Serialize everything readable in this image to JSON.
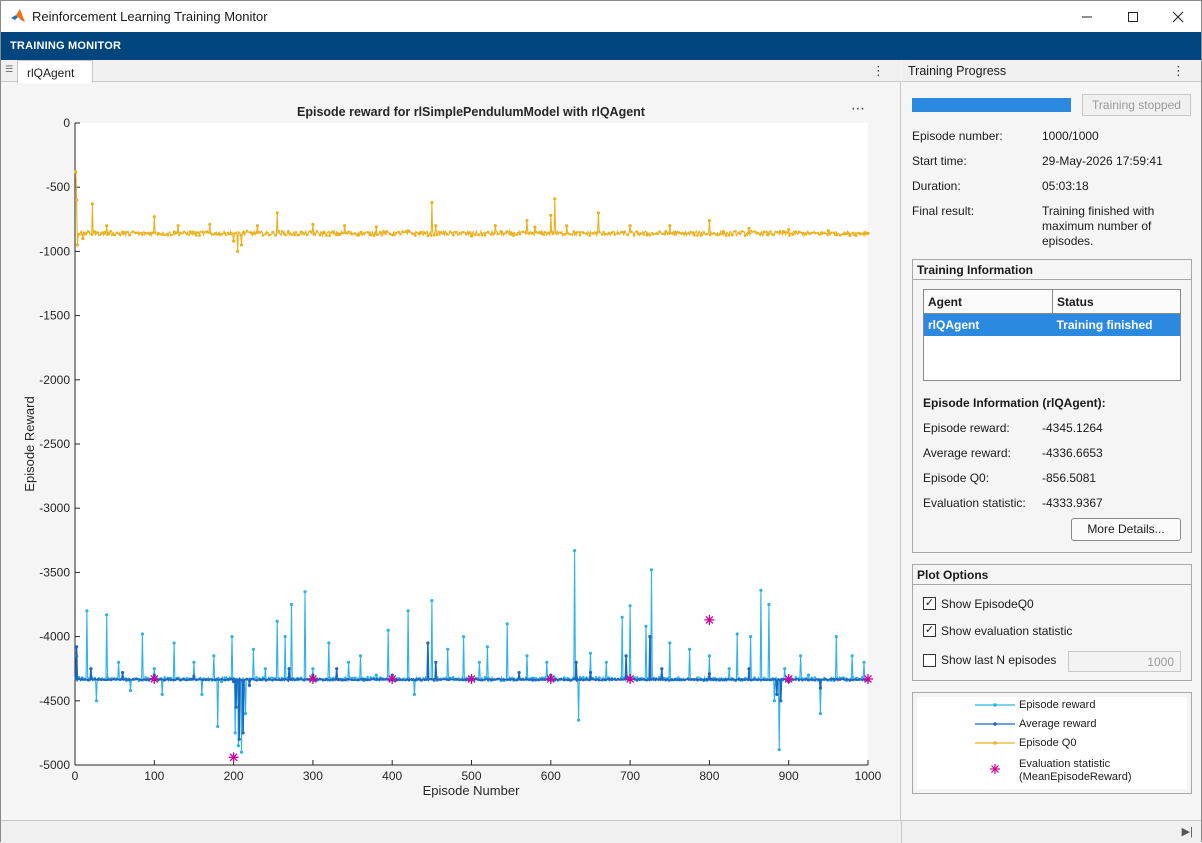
{
  "window": {
    "title": "Reinforcement Learning Training Monitor",
    "minimize_icon": "minimize-icon",
    "maximize_icon": "maximize-icon",
    "close_icon": "close-icon"
  },
  "toolstrip": {
    "tab_label": "TRAINING MONITOR"
  },
  "document": {
    "tab_label": "rlQAgent"
  },
  "chart_data": {
    "type": "line",
    "title": "Episode reward for rlSimplePendulumModel with rlQAgent",
    "xlabel": "Episode Number",
    "ylabel": "Episode Reward",
    "xlim": [
      0,
      1000
    ],
    "ylim": [
      -5000,
      0
    ],
    "xticks": [
      0,
      100,
      200,
      300,
      400,
      500,
      600,
      700,
      800,
      900,
      1000
    ],
    "yticks": [
      0,
      -500,
      -1000,
      -1500,
      -2000,
      -2500,
      -3000,
      -3500,
      -4000,
      -4500,
      -5000
    ],
    "grid": false,
    "legend": "right-panel",
    "series": [
      {
        "name": "Episode reward",
        "color": "#2db3e8",
        "marker": "dot",
        "baseline": -4330,
        "spikes": [
          [
            2,
            -4150
          ],
          [
            15,
            -3800
          ],
          [
            27,
            -4500
          ],
          [
            40,
            -3830
          ],
          [
            55,
            -4200
          ],
          [
            70,
            -4420
          ],
          [
            85,
            -3980
          ],
          [
            100,
            -4250
          ],
          [
            110,
            -4450
          ],
          [
            125,
            -4050
          ],
          [
            150,
            -4200
          ],
          [
            160,
            -4450
          ],
          [
            175,
            -4150
          ],
          [
            180,
            -4700
          ],
          [
            185,
            -4350
          ],
          [
            198,
            -4000
          ],
          [
            202,
            -4750
          ],
          [
            206,
            -4850
          ],
          [
            210,
            -4900
          ],
          [
            215,
            -4600
          ],
          [
            225,
            -4100
          ],
          [
            240,
            -4250
          ],
          [
            255,
            -3880
          ],
          [
            265,
            -4000
          ],
          [
            273,
            -3750
          ],
          [
            290,
            -3650
          ],
          [
            300,
            -4250
          ],
          [
            320,
            -4050
          ],
          [
            345,
            -4200
          ],
          [
            360,
            -4150
          ],
          [
            380,
            -4300
          ],
          [
            395,
            -3950
          ],
          [
            420,
            -3800
          ],
          [
            428,
            -4450
          ],
          [
            450,
            -3720
          ],
          [
            470,
            -4100
          ],
          [
            490,
            -4000
          ],
          [
            510,
            -4200
          ],
          [
            520,
            -4080
          ],
          [
            545,
            -3900
          ],
          [
            570,
            -4150
          ],
          [
            595,
            -4200
          ],
          [
            630,
            -3330
          ],
          [
            635,
            -4650
          ],
          [
            650,
            -4130
          ],
          [
            670,
            -4200
          ],
          [
            690,
            -3850
          ],
          [
            700,
            -3760
          ],
          [
            720,
            -3920
          ],
          [
            727,
            -3480
          ],
          [
            750,
            -4050
          ],
          [
            775,
            -4100
          ],
          [
            800,
            -4150
          ],
          [
            825,
            -4250
          ],
          [
            835,
            -3980
          ],
          [
            852,
            -4000
          ],
          [
            865,
            -3640
          ],
          [
            875,
            -3750
          ],
          [
            882,
            -4500
          ],
          [
            888,
            -4880
          ],
          [
            895,
            -4250
          ],
          [
            915,
            -4150
          ],
          [
            925,
            -4300
          ],
          [
            940,
            -4600
          ],
          [
            960,
            -4000
          ],
          [
            980,
            -4150
          ],
          [
            995,
            -4200
          ]
        ]
      },
      {
        "name": "Average reward",
        "color": "#1f66bf",
        "marker": "dot",
        "baseline": -4335,
        "spikes": [
          [
            2,
            -4080
          ],
          [
            20,
            -4250
          ],
          [
            60,
            -4280
          ],
          [
            100,
            -4300
          ],
          [
            150,
            -4310
          ],
          [
            200,
            -4350
          ],
          [
            203,
            -4550
          ],
          [
            207,
            -4800
          ],
          [
            212,
            -4750
          ],
          [
            220,
            -4380
          ],
          [
            270,
            -4250
          ],
          [
            300,
            -4300
          ],
          [
            330,
            -4250
          ],
          [
            400,
            -4300
          ],
          [
            445,
            -4050
          ],
          [
            455,
            -4200
          ],
          [
            500,
            -4320
          ],
          [
            560,
            -4280
          ],
          [
            600,
            -4300
          ],
          [
            632,
            -4200
          ],
          [
            650,
            -4280
          ],
          [
            695,
            -4150
          ],
          [
            725,
            -4000
          ],
          [
            740,
            -4250
          ],
          [
            800,
            -4290
          ],
          [
            850,
            -4250
          ],
          [
            885,
            -4450
          ],
          [
            890,
            -4500
          ],
          [
            900,
            -4350
          ],
          [
            940,
            -4400
          ],
          [
            1000,
            -4340
          ]
        ]
      },
      {
        "name": "Episode Q0",
        "color": "#edb120",
        "marker": "dot",
        "baseline": -860,
        "spikes": [
          [
            1,
            -380
          ],
          [
            2,
            -600
          ],
          [
            3,
            -950
          ],
          [
            10,
            -900
          ],
          [
            22,
            -630
          ],
          [
            40,
            -800
          ],
          [
            60,
            -850
          ],
          [
            100,
            -730
          ],
          [
            130,
            -800
          ],
          [
            170,
            -790
          ],
          [
            200,
            -920
          ],
          [
            205,
            -1000
          ],
          [
            210,
            -950
          ],
          [
            230,
            -800
          ],
          [
            255,
            -700
          ],
          [
            300,
            -790
          ],
          [
            340,
            -800
          ],
          [
            380,
            -810
          ],
          [
            420,
            -840
          ],
          [
            450,
            -620
          ],
          [
            455,
            -800
          ],
          [
            500,
            -880
          ],
          [
            530,
            -800
          ],
          [
            570,
            -760
          ],
          [
            580,
            -810
          ],
          [
            600,
            -720
          ],
          [
            605,
            -590
          ],
          [
            620,
            -800
          ],
          [
            660,
            -700
          ],
          [
            700,
            -800
          ],
          [
            750,
            -800
          ],
          [
            800,
            -760
          ],
          [
            850,
            -820
          ],
          [
            900,
            -830
          ],
          [
            950,
            -840
          ],
          [
            1000,
            -860
          ]
        ]
      },
      {
        "name": "Evaluation statistic\n(MeanEpisodeReward)",
        "color": "#cc0099",
        "marker": "asterisk",
        "x": [
          100,
          200,
          300,
          400,
          500,
          600,
          700,
          800,
          900,
          1000
        ],
        "y": [
          -4330,
          -4940,
          -4330,
          -4330,
          -4330,
          -4330,
          -4330,
          -3870,
          -4330,
          -4330
        ]
      }
    ]
  },
  "panel": {
    "header": "Training Progress",
    "progress_fraction": 1.0,
    "stop_button": "Training stopped",
    "fields": [
      {
        "label": "Episode number:",
        "value": "1000/1000"
      },
      {
        "label": "Start time:",
        "value": "29-May-2026 17:59:41"
      },
      {
        "label": "Duration:",
        "value": "05:03:18"
      },
      {
        "label": "Final result:",
        "value": "Training finished with maximum number of episodes."
      }
    ],
    "training_info": {
      "title": "Training Information",
      "col_agent": "Agent",
      "col_status": "Status",
      "row_agent": "rlQAgent",
      "row_status": "Training finished",
      "episode_info_title": "Episode Information (rlQAgent):",
      "episode_fields": [
        {
          "label": "Episode reward:",
          "value": "-4345.1264"
        },
        {
          "label": "Average reward:",
          "value": "-4336.6653"
        },
        {
          "label": "Episode Q0:",
          "value": "-856.5081"
        },
        {
          "label": "Evaluation statistic:",
          "value": "-4333.9367"
        }
      ],
      "more_details": "More Details..."
    },
    "plot_options": {
      "title": "Plot Options",
      "opt1": "Show EpisodeQ0",
      "opt2": "Show evaluation statistic",
      "opt3": "Show last N episodes",
      "n_value": "1000"
    }
  }
}
